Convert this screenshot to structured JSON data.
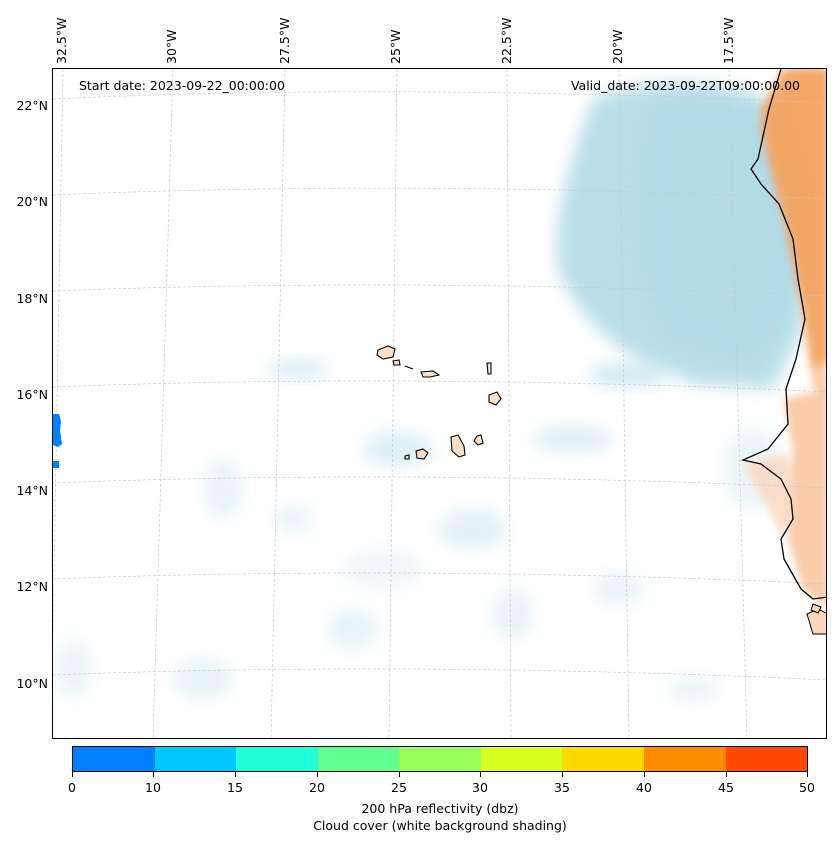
{
  "map": {
    "start_date": "Start date: 2023-09-22_00:00:00",
    "valid_date": "Valid_date: 2023-09-22T09:00:00.00",
    "longitude_labels": [
      "32.5°W",
      "30°W",
      "27.5°W",
      "25°W",
      "22.5°W",
      "20°W",
      "17.5°W"
    ],
    "latitude_labels": [
      "22°N",
      "20°N",
      "18°N",
      "16°N",
      "14°N",
      "12°N",
      "10°N"
    ],
    "region": "Cape Verde islands and West African coast",
    "colors": {
      "cloud_cover": "#add8e6",
      "land_heat": "#f4a460",
      "reflectivity_blue": "#0080ff",
      "coastline": "#000000",
      "gridline": "#c8c8c8"
    }
  },
  "colorbar": {
    "ticks": [
      "0",
      "10",
      "15",
      "20",
      "25",
      "30",
      "35",
      "40",
      "45",
      "50"
    ],
    "colors": [
      "#0080ff",
      "#00c8ff",
      "#20ffd8",
      "#60ff90",
      "#98ff58",
      "#d8ff20",
      "#ffd800",
      "#ff8c00",
      "#ff4a00"
    ],
    "title_line1": "200 hPa reflectivity (dbz)",
    "title_line2": "Cloud cover (white background shading)"
  }
}
